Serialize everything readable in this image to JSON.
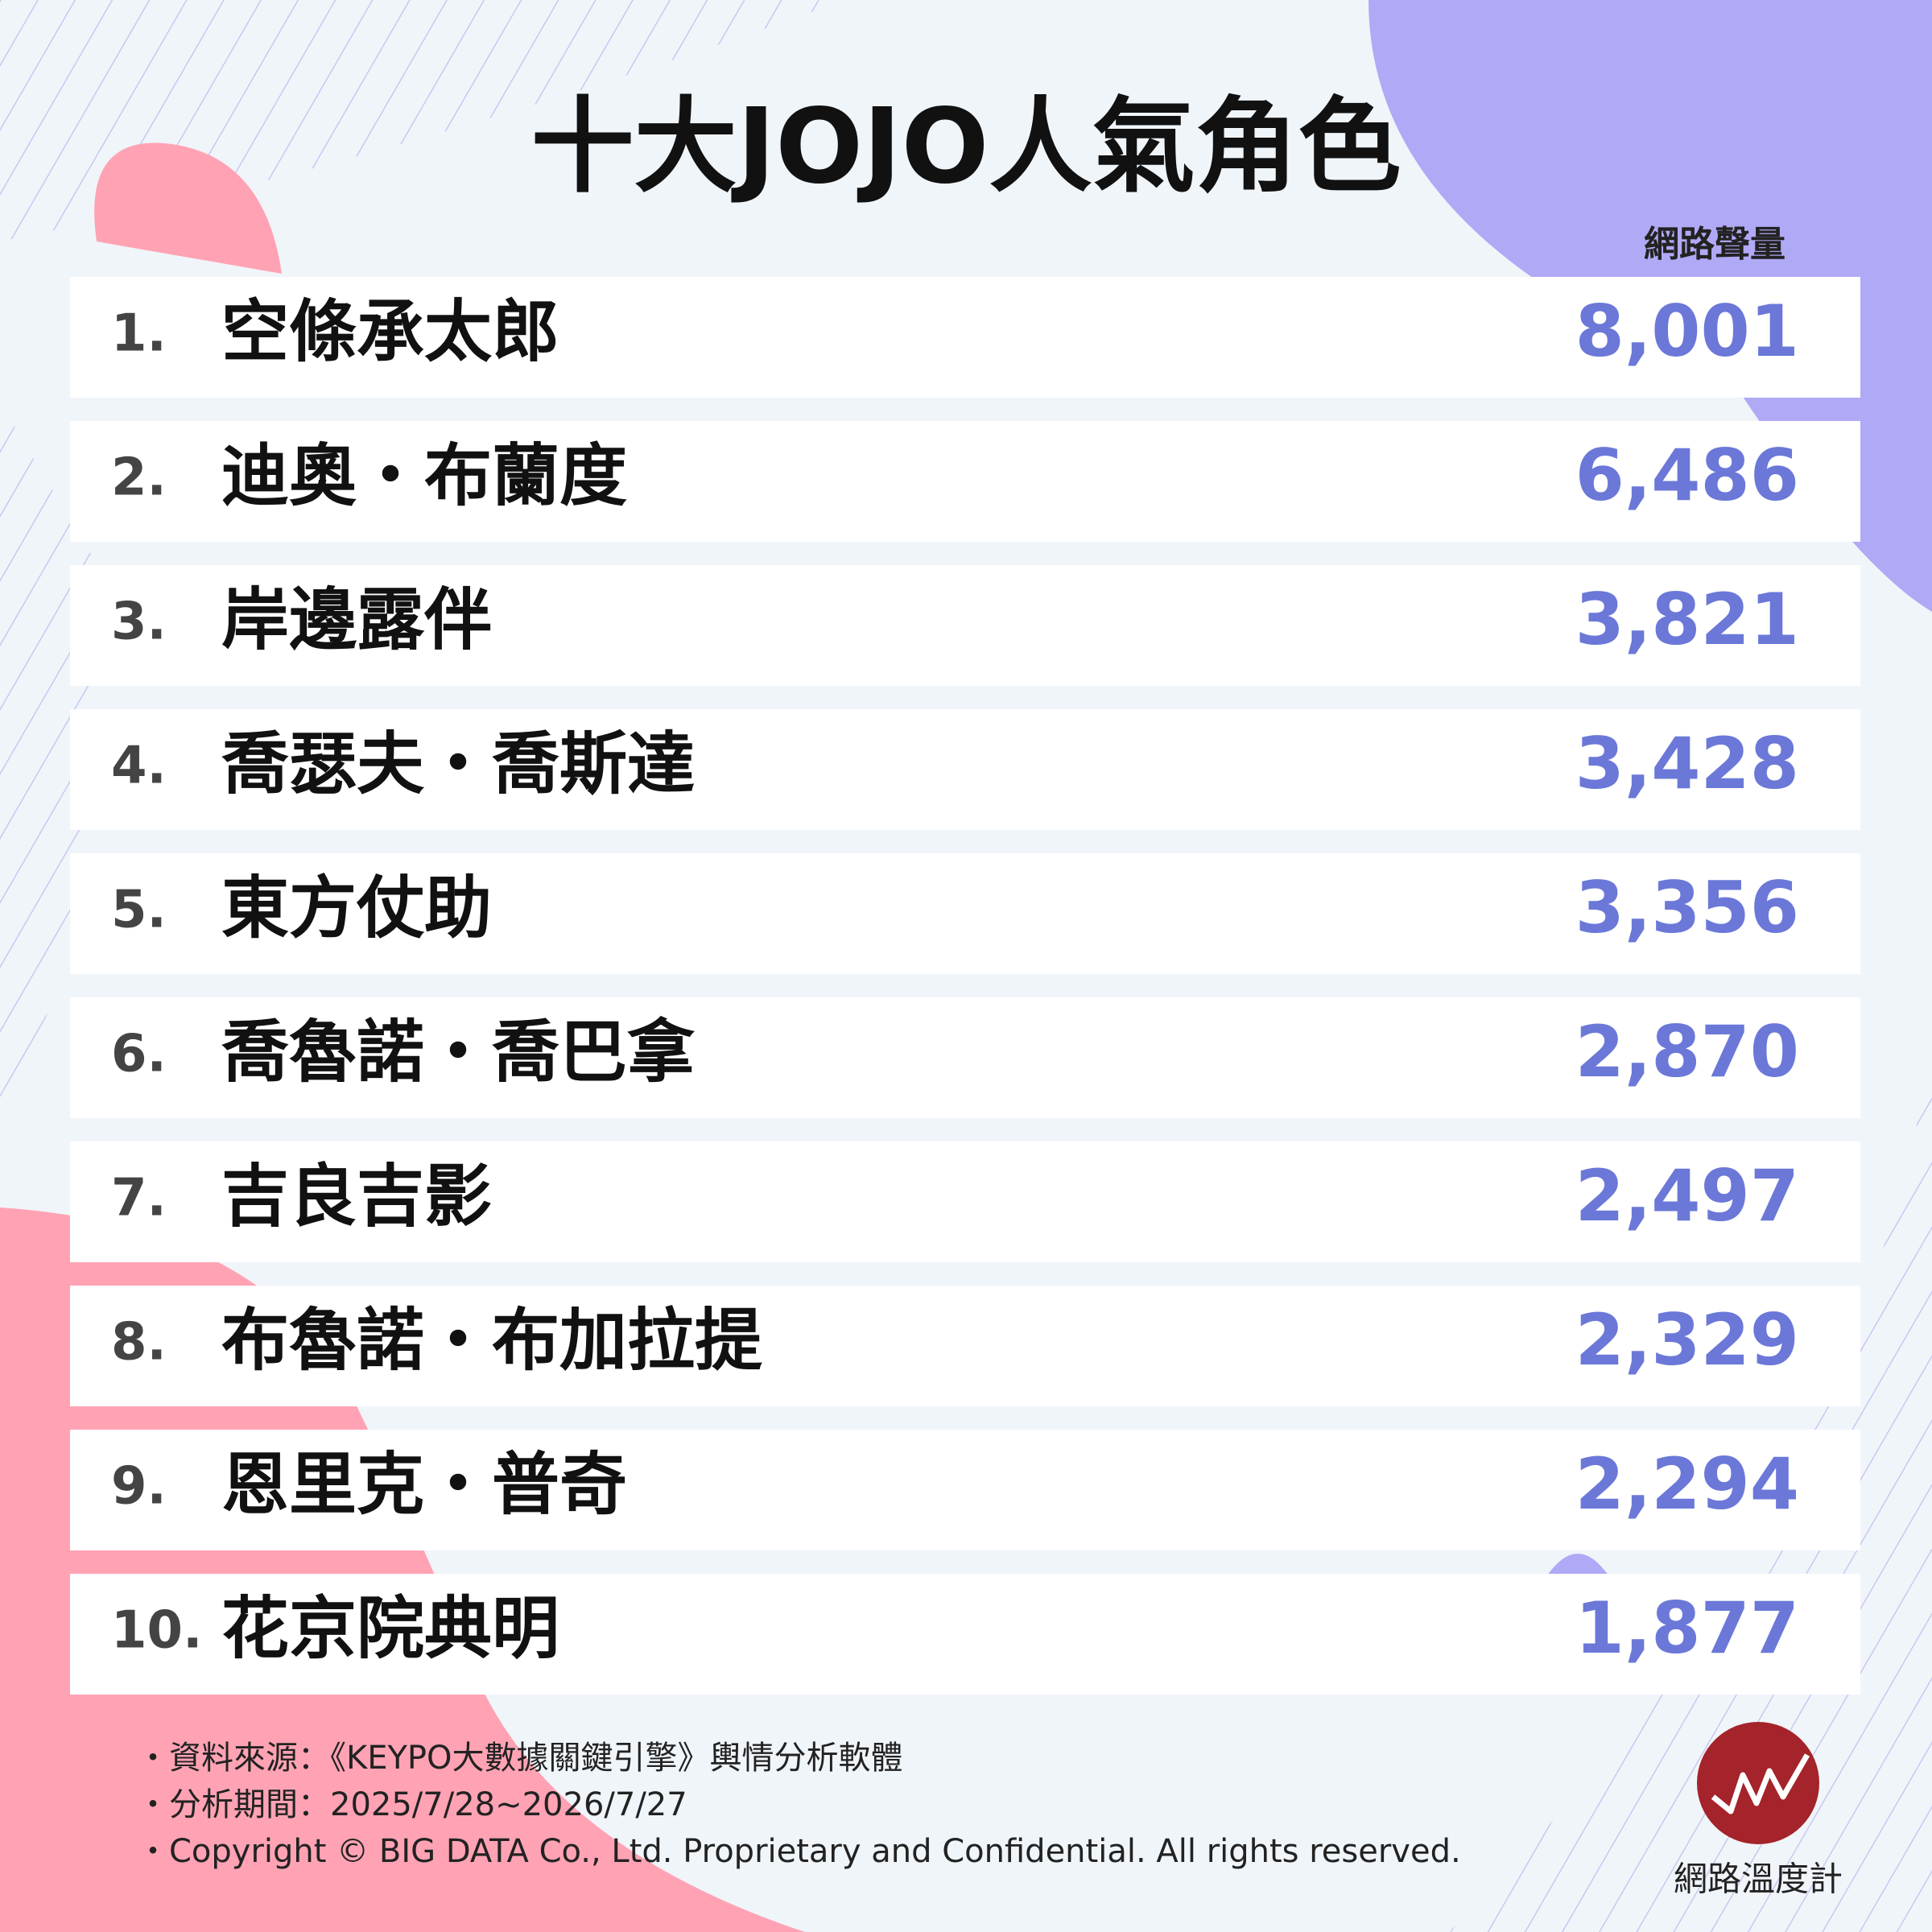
{
  "title": "十大JOJO人氣角色",
  "column_header": "網路聲量",
  "rows": [
    {
      "rank": "1.",
      "name": "空條承太郎",
      "value": "8,001"
    },
    {
      "rank": "2.",
      "name": "迪奧・布蘭度",
      "value": "6,486"
    },
    {
      "rank": "3.",
      "name": "岸邊露伴",
      "value": "3,821"
    },
    {
      "rank": "4.",
      "name": "喬瑟夫・喬斯達",
      "value": "3,428"
    },
    {
      "rank": "5.",
      "name": "東方仗助",
      "value": "3,356"
    },
    {
      "rank": "6.",
      "name": "喬魯諾・喬巴拿",
      "value": "2,870"
    },
    {
      "rank": "7.",
      "name": "吉良吉影",
      "value": "2,497"
    },
    {
      "rank": "8.",
      "name": "布魯諾・布加拉提",
      "value": "2,329"
    },
    {
      "rank": "9.",
      "name": "恩里克・普奇",
      "value": "2,294"
    },
    {
      "rank": "10.",
      "name": "花京院典明",
      "value": "1,877"
    }
  ],
  "footer": [
    "・資料來源：《KEYPO大數據關鍵引擎》輿情分析軟體",
    "・分析期間：2025/7/28~2026/7/27",
    "・Copyright © BIG DATA Co., Ltd. Proprietary and Confidential. All rights reserved."
  ],
  "logo_text": "網路溫度計"
}
